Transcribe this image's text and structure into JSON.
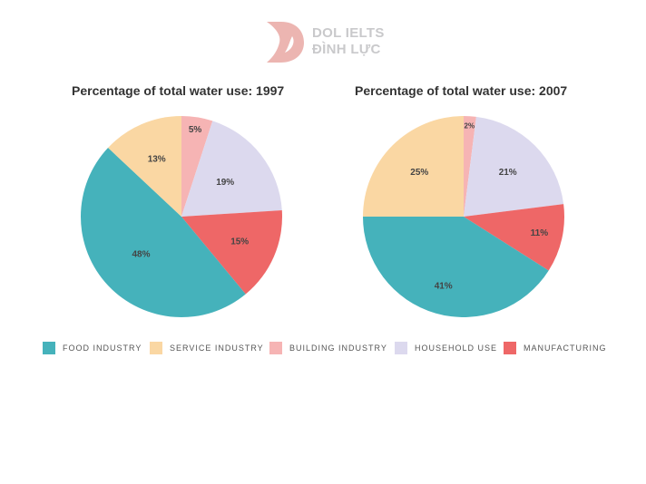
{
  "brand": {
    "line1": "DOL IELTS",
    "line2": "ĐÌNH LỰC",
    "color": "#ecb5b1"
  },
  "legend": [
    {
      "name": "FOOD INDUSTRY",
      "color": "#45b2bb"
    },
    {
      "name": "SERVICE INDUSTRY",
      "color": "#fad7a3"
    },
    {
      "name": "BUILDING INDUSTRY",
      "color": "#f6b4b4"
    },
    {
      "name": "HOUSEHOLD USE",
      "color": "#dcd9ee"
    },
    {
      "name": "MANUFACTURING",
      "color": "#ee6767"
    }
  ],
  "chart_data": [
    {
      "type": "pie",
      "title": "Percentage of total water use: 1997",
      "slices": [
        {
          "label": "Building Industry",
          "value": 5,
          "text": "5%"
        },
        {
          "label": "Household Use",
          "value": 19,
          "text": "19%"
        },
        {
          "label": "Manufacturing",
          "value": 15,
          "text": "15%"
        },
        {
          "label": "Food Industry",
          "value": 48,
          "text": "48%"
        },
        {
          "label": "Service Industry",
          "value": 13,
          "text": "13%"
        }
      ]
    },
    {
      "type": "pie",
      "title": "Percentage of total water use: 2007",
      "slices": [
        {
          "label": "Building Industry",
          "value": 2,
          "text": "2%"
        },
        {
          "label": "Household Use",
          "value": 21,
          "text": "21%"
        },
        {
          "label": "Manufacturing",
          "value": 11,
          "text": "11%"
        },
        {
          "label": "Food Industry",
          "value": 41,
          "text": "41%"
        },
        {
          "label": "Service Industry",
          "value": 25,
          "text": "25%"
        }
      ]
    }
  ]
}
